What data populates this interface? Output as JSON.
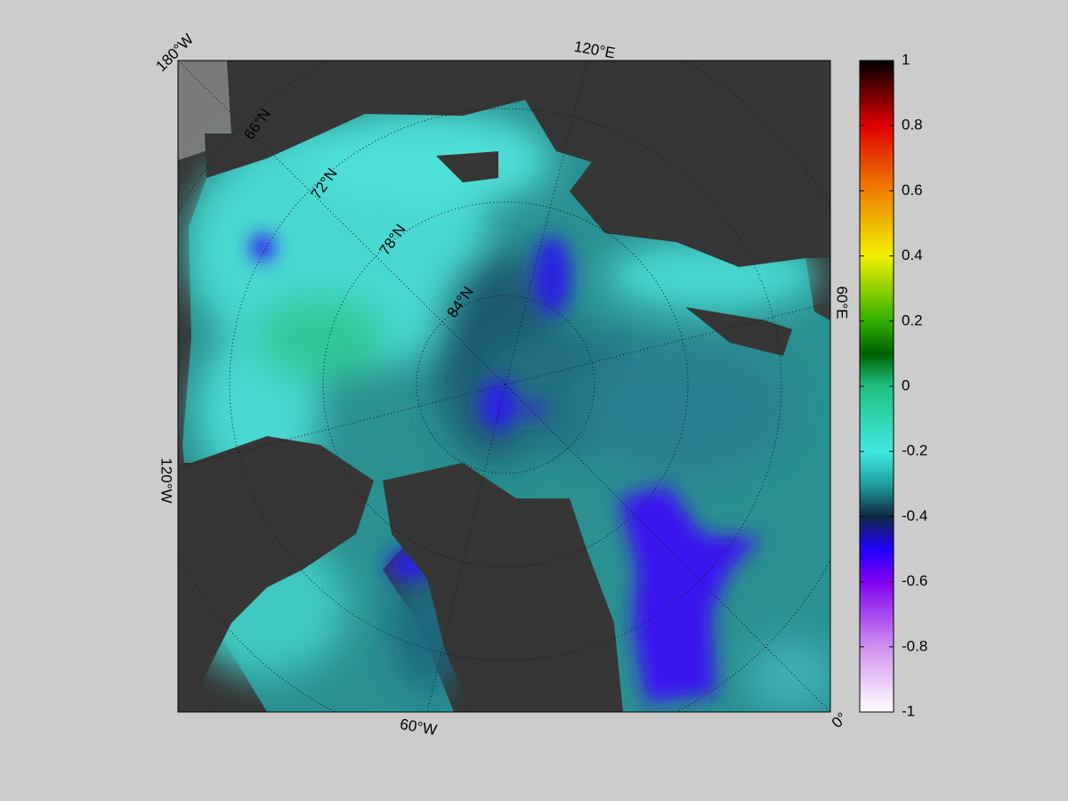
{
  "map": {
    "longitude_labels": [
      "180°W",
      "120°E",
      "60°E",
      "0°",
      "60°W",
      "120°W"
    ],
    "latitude_labels": [
      "66°N",
      "72°N",
      "78°N",
      "84°N"
    ],
    "colorbar": {
      "range": [
        -1,
        1
      ],
      "ticks": [
        1,
        0.8,
        0.6,
        0.4,
        0.2,
        0,
        -0.2,
        -0.4,
        -0.6,
        -0.8,
        -1
      ]
    }
  }
}
